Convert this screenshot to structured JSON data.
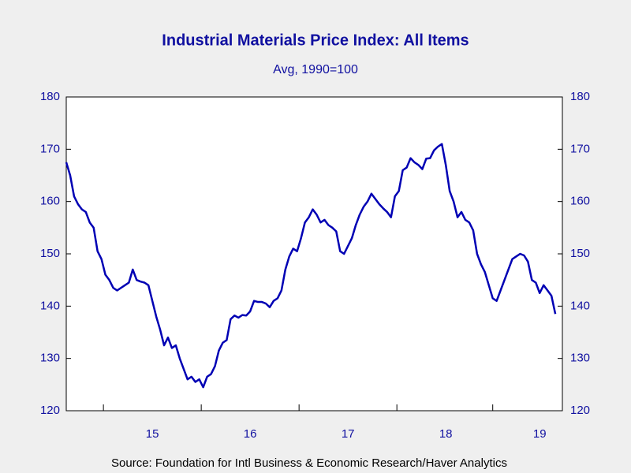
{
  "chart_data": {
    "type": "line",
    "title": "Industrial Materials Price Index: All Items",
    "subtitle": "Avg, 1990=100",
    "source": "Source:  Foundation for Intl Business & Economic Research/Haver Analytics",
    "categories": [
      null,
      null,
      null,
      null,
      null,
      null,
      null,
      null,
      null,
      null,
      null,
      null,
      null,
      null,
      null,
      null,
      null,
      null,
      null,
      null,
      null,
      null,
      "15",
      null,
      null,
      null,
      null,
      null,
      null,
      null,
      null,
      null,
      null,
      null,
      null,
      null,
      null,
      null,
      null,
      null,
      null,
      null,
      null,
      null,
      null,
      null,
      null,
      "16",
      null,
      null,
      null,
      null,
      null,
      null,
      null,
      null,
      null,
      null,
      null,
      null,
      null,
      null,
      null,
      null,
      null,
      null,
      null,
      null,
      null,
      null,
      null,
      null,
      "17",
      null,
      null,
      null,
      null,
      null,
      null,
      null,
      null,
      null,
      null,
      null,
      null,
      null,
      null,
      null,
      null,
      null,
      null,
      null,
      null,
      null,
      null,
      null,
      null,
      "18",
      null,
      null,
      null,
      null,
      null,
      null,
      null,
      null,
      null,
      null,
      null,
      null,
      null,
      null,
      null,
      null,
      null,
      null,
      null,
      null,
      null,
      null,
      null,
      "19",
      null,
      null,
      null,
      null
    ],
    "series": [
      {
        "name": "Industrial Materials Price Index",
        "color": "#0000b4",
        "values": [
          167.5,
          165,
          161,
          159.5,
          158.5,
          158,
          156,
          155,
          150.5,
          149,
          146,
          145,
          143.5,
          143,
          143.5,
          144,
          144.5,
          147,
          145,
          144.7,
          144.5,
          144,
          141,
          138,
          135.5,
          132.5,
          134,
          132,
          132.5,
          130,
          128,
          126,
          126.5,
          125.5,
          126,
          124.5,
          126.5,
          127,
          128.5,
          131.5,
          133,
          133.5,
          137.5,
          138.2,
          137.8,
          138.3,
          138.2,
          139,
          141,
          140.8,
          140.8,
          140.5,
          139.8,
          141,
          141.5,
          143,
          147,
          149.5,
          151,
          150.5,
          153,
          156,
          157,
          158.5,
          157.5,
          156,
          156.5,
          155.5,
          155,
          154.3,
          150.5,
          150,
          151.5,
          153,
          155.5,
          157.5,
          159,
          160,
          161.5,
          160.5,
          159.5,
          158.7,
          158,
          157,
          161,
          162,
          166,
          166.5,
          168.3,
          167.5,
          167,
          166.2,
          168.2,
          168.3,
          169.8,
          170.5,
          171,
          167,
          162,
          160,
          157,
          158,
          156.5,
          156,
          154.5,
          150,
          148,
          146.5,
          144,
          141.5,
          141,
          143,
          145,
          147,
          149,
          149.5,
          150,
          149.7,
          148.5,
          145,
          144.5,
          142.5,
          144,
          143,
          142,
          138.5
        ]
      }
    ],
    "ylim": [
      120,
      180
    ],
    "yticks": [
      120,
      130,
      140,
      150,
      160,
      170,
      180
    ]
  }
}
